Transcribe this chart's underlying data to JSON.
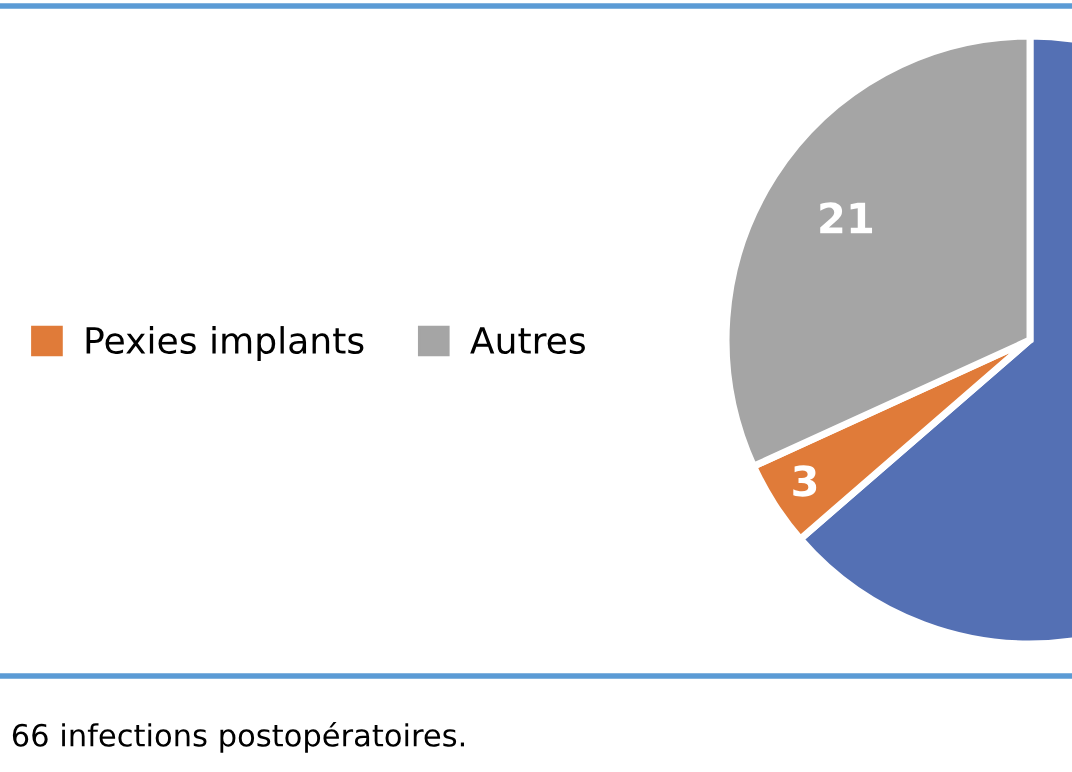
{
  "chart_data": {
    "type": "pie",
    "categories": [
      null,
      "Pexies implants",
      "Autres"
    ],
    "values": [
      42,
      3,
      21
    ],
    "colors": [
      "#5470b4",
      "#e07b39",
      "#a5a5a5"
    ],
    "value_labels": [
      null,
      "3",
      "21"
    ],
    "legend": "left",
    "annotations": [
      "66 infections postopératoires."
    ]
  }
}
